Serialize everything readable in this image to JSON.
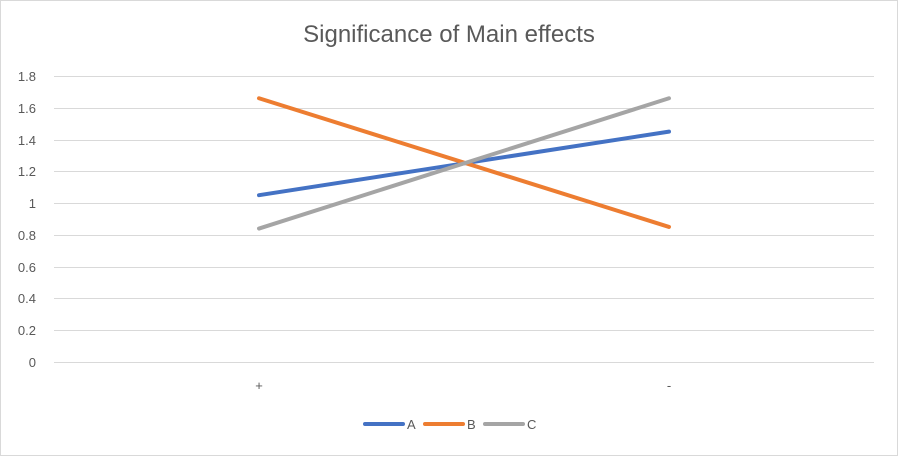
{
  "chart_data": {
    "type": "line",
    "title": "Significance of Main effects",
    "xlabel": "",
    "ylabel": "",
    "categories": [
      "+",
      "-"
    ],
    "ylim": [
      0,
      1.8
    ],
    "yticks": [
      "0",
      "0.2",
      "0.4",
      "0.6",
      "0.8",
      "1",
      "1.2",
      "1.4",
      "1.6",
      "1.8"
    ],
    "grid": true,
    "legend_position": "bottom",
    "series": [
      {
        "name": "A",
        "values": [
          1.05,
          1.45
        ],
        "color": "#4472C4"
      },
      {
        "name": "B",
        "values": [
          1.66,
          0.85
        ],
        "color": "#ED7D31"
      },
      {
        "name": "C",
        "values": [
          0.84,
          1.66
        ],
        "color": "#A5A5A5"
      }
    ]
  }
}
